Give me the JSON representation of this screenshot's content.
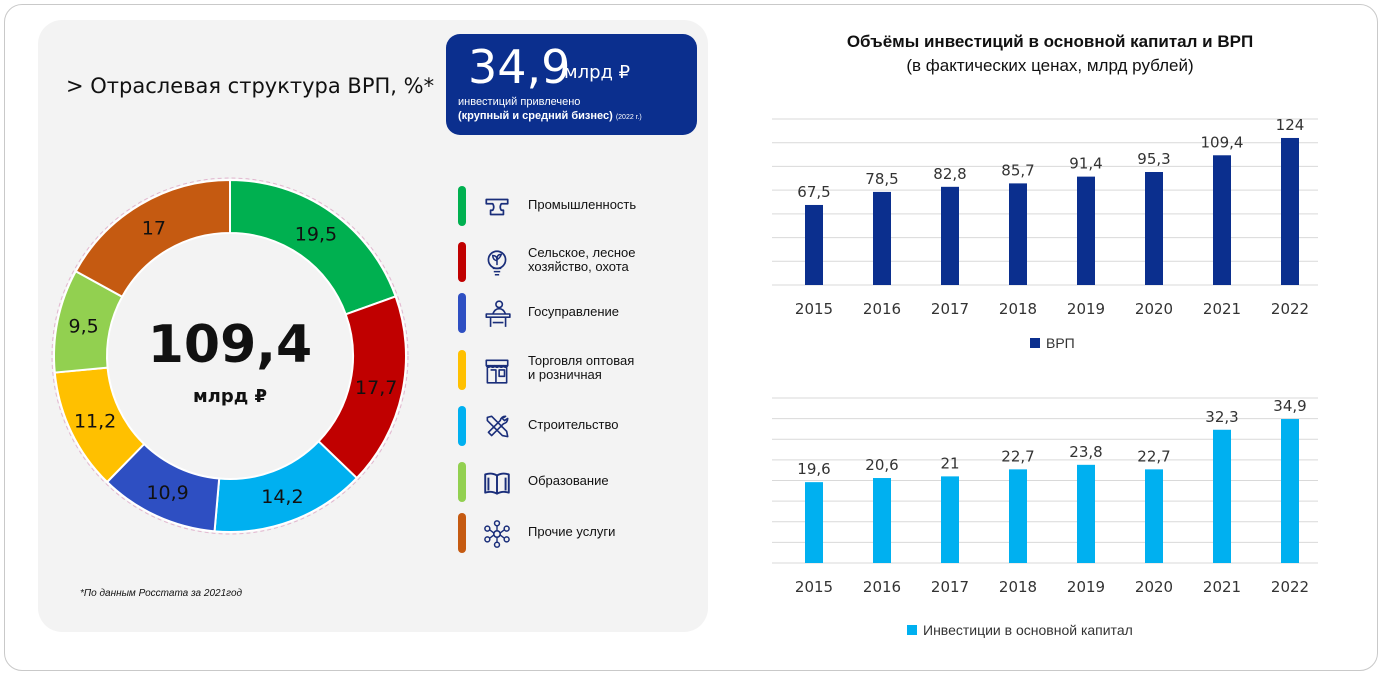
{
  "left": {
    "title": "> Отраслевая структура ВРП, %*",
    "center_value": "109,4",
    "center_unit": "млрд ₽",
    "footnote": "*По данным Росстата за 2021год"
  },
  "investment_box": {
    "value": "34,9",
    "unit": "млрд ₽",
    "caption": "инвестиций привлечено",
    "subcaption": "(крупный и средний бизнес)",
    "year_note": "(2022 г.)"
  },
  "legend": [
    {
      "label_lines": [
        "Промышленность"
      ],
      "color": "#00b050",
      "icon": "anvil-icon"
    },
    {
      "label_lines": [
        "Сельское, лесное",
        "хозяйство, охота"
      ],
      "color": "#c00000",
      "icon": "plant-bulb-icon"
    },
    {
      "label_lines": [
        "Госуправление"
      ],
      "color": "#2e4fc2",
      "icon": "podium-icon"
    },
    {
      "label_lines": [
        "Торговля оптовая",
        "и розничная"
      ],
      "color": "#ffc000",
      "icon": "shop-icon"
    },
    {
      "label_lines": [
        "Строительство"
      ],
      "color": "#00b0f0",
      "icon": "tools-icon"
    },
    {
      "label_lines": [
        "Образование"
      ],
      "color": "#92d050",
      "icon": "book-icon"
    },
    {
      "label_lines": [
        "Прочие услуги"
      ],
      "color": "#c55a11",
      "icon": "network-icon"
    }
  ],
  "right": {
    "title": "Объёмы инвестиций в основной капитал и ВРП",
    "subtitle": "(в фактических ценах, млрд рублей)"
  },
  "chart_data": [
    {
      "type": "pie",
      "categories": [
        "Промышленность",
        "Сельское, лесное хозяйство, охота",
        "Госуправление",
        "Торговля оптовая и розничная",
        "Строительство",
        "Образование",
        "Прочие услуги"
      ],
      "values": [
        19.5,
        17.7,
        10.9,
        11.2,
        14.2,
        9.5,
        17
      ],
      "value_labels": [
        "19,5",
        "17,7",
        "10,9",
        "11,2",
        "14,2",
        "9,5",
        "17"
      ],
      "colors": [
        "#00b050",
        "#c00000",
        "#2e4fc2",
        "#ffc000",
        "#00b0f0",
        "#92d050",
        "#c55a11"
      ],
      "draw_order": [
        0,
        1,
        4,
        2,
        3,
        5,
        6
      ],
      "title": "> Отраслевая структура ВРП, %*"
    },
    {
      "type": "bar",
      "categories": [
        "2015",
        "2016",
        "2017",
        "2018",
        "2019",
        "2020",
        "2021",
        "2022"
      ],
      "series": [
        {
          "name": "ВРП",
          "values": [
            67.5,
            78.5,
            82.8,
            85.7,
            91.4,
            95.3,
            109.4,
            124
          ],
          "value_labels": [
            "67,5",
            "78,5",
            "82,8",
            "85,7",
            "91,4",
            "95,3",
            "109,4",
            "124"
          ],
          "color": "#0b2f8e"
        }
      ],
      "ylim": [
        0,
        140
      ],
      "grid": true,
      "legend": "bottom"
    },
    {
      "type": "bar",
      "categories": [
        "2015",
        "2016",
        "2017",
        "2018",
        "2019",
        "2020",
        "2021",
        "2022"
      ],
      "series": [
        {
          "name": "Инвестиции в основной капитал",
          "values": [
            19.6,
            20.6,
            21,
            22.7,
            23.8,
            22.7,
            32.3,
            34.9
          ],
          "value_labels": [
            "19,6",
            "20,6",
            "21",
            "22,7",
            "23,8",
            "22,7",
            "32,3",
            "34,9"
          ],
          "color": "#00b0f0"
        }
      ],
      "ylim": [
        0,
        40
      ],
      "grid": true,
      "legend": "bottom"
    }
  ]
}
